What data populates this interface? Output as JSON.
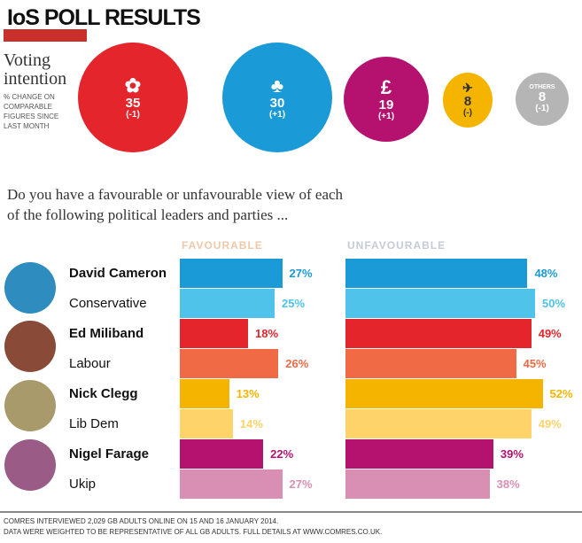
{
  "header": {
    "title": "IoS POLL RESULTS",
    "voting_label": "Voting intention",
    "voting_sub": "% CHANGE ON COMPARABLE FIGURES SINCE LAST MONTH"
  },
  "voting": [
    {
      "party": "Labour",
      "value": "35",
      "change": "(-1)",
      "color": "#e4252b",
      "icon": "rose-icon",
      "glyph": "✿"
    },
    {
      "party": "Conservative",
      "value": "30",
      "change": "(+1)",
      "color": "#1a9ad6",
      "icon": "tree-icon",
      "glyph": "♣"
    },
    {
      "party": "Ukip",
      "value": "19",
      "change": "(+1)",
      "color": "#b4126e",
      "icon": "pound-icon",
      "glyph": "£"
    },
    {
      "party": "Lib Dem",
      "value": "8",
      "change": "(-)",
      "color": "#f5b400",
      "icon": "bird-icon",
      "glyph": "✈"
    },
    {
      "party": "Others",
      "label": "OTHERS",
      "value": "8",
      "change": "(-1)",
      "color": "#b5b5b5"
    }
  ],
  "question": "Do you have a favourable or unfavourable view of each of the following political leaders and parties ...",
  "chart_data": {
    "type": "bar",
    "categories": [
      "David Cameron",
      "Conservative",
      "Ed Miliband",
      "Labour",
      "Nick Clegg",
      "Lib Dem",
      "Nigel Farage",
      "Ukip"
    ],
    "series": [
      {
        "name": "FAVOURABLE",
        "values": [
          27,
          25,
          18,
          26,
          13,
          14,
          22,
          27
        ]
      },
      {
        "name": "UNFAVOURABLE",
        "values": [
          48,
          50,
          49,
          45,
          52,
          49,
          39,
          38
        ]
      }
    ],
    "colors": [
      "#1a9ad6",
      "#4fc3ea",
      "#e4252b",
      "#ef6a45",
      "#f5b400",
      "#fdd36a",
      "#b4126e",
      "#d98fb4"
    ],
    "bold": [
      true,
      false,
      true,
      false,
      true,
      false,
      true,
      false
    ],
    "unit": "%"
  },
  "footer": [
    "COMRES INTERVIEWED 2,029 GB ADULTS ONLINE ON 15 AND 16 JANUARY 2014.",
    "DATA WERE WEIGHTED TO BE REPRESENTATIVE OF ALL GB ADULTS. FULL DETAILS AT WWW.COMRES.CO.UK."
  ]
}
